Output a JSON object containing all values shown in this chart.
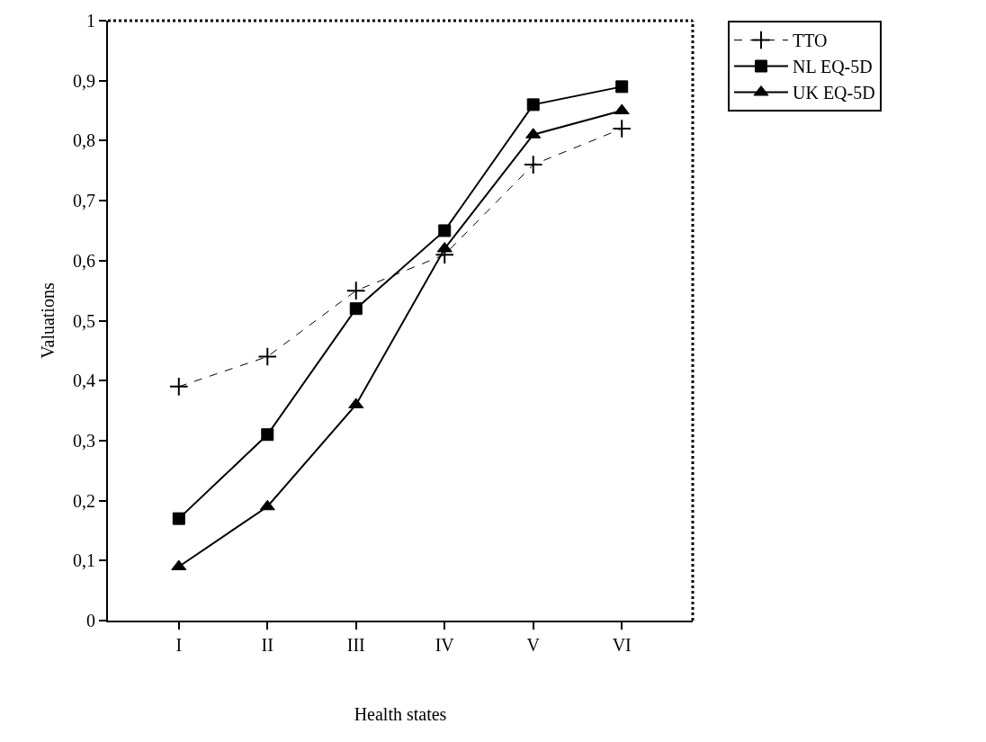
{
  "chart_data": {
    "type": "line",
    "xlabel": "Health states",
    "ylabel": "Valuations",
    "categories": [
      "I",
      "II",
      "III",
      "IV",
      "V",
      "VI"
    ],
    "ylim": [
      0,
      1
    ],
    "yticks": [
      0,
      {
        "value": 0.1,
        "label": "0,1"
      },
      {
        "value": 0.2,
        "label": "0,2"
      },
      {
        "value": 0.3,
        "label": "0,3"
      },
      {
        "value": 0.4,
        "label": "0,4"
      },
      {
        "value": 0.5,
        "label": "0,5"
      },
      {
        "value": 0.6,
        "label": "0,6"
      },
      {
        "value": 0.7,
        "label": "0,7"
      },
      {
        "value": 0.8,
        "label": "0,8"
      },
      {
        "value": 0.9,
        "label": "0,9"
      },
      1
    ],
    "legend": "right",
    "series": [
      {
        "name": "TTO",
        "color": "#000000",
        "marker": "cross",
        "line_style": "dashed",
        "values": [
          0.39,
          0.44,
          0.55,
          0.61,
          0.76,
          0.82
        ]
      },
      {
        "name": "NL EQ-5D",
        "color": "#000000",
        "marker": "square",
        "line_style": "solid",
        "values": [
          0.17,
          0.31,
          0.52,
          0.65,
          0.86,
          0.89
        ]
      },
      {
        "name": "UK EQ-5D",
        "color": "#000000",
        "marker": "triangle",
        "line_style": "solid",
        "values": [
          0.09,
          0.19,
          0.36,
          0.62,
          0.81,
          0.85
        ]
      }
    ]
  }
}
